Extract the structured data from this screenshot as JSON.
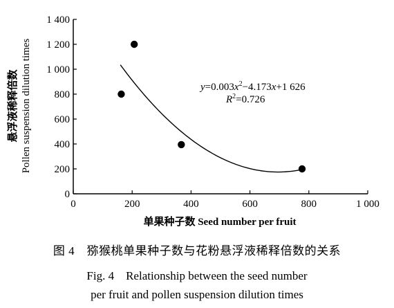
{
  "chart_data": {
    "type": "scatter",
    "xlabel": "单果种子数 Seed number per fruit",
    "ylabel_cn": "悬浮液稀释倍数",
    "ylabel_en": "Pollen suspension dilution times",
    "xlim": [
      0,
      1000
    ],
    "ylim": [
      0,
      1400
    ],
    "xticks": [
      0,
      200,
      400,
      600,
      800,
      1000
    ],
    "xtick_labels": [
      "0",
      "200",
      "400",
      "600",
      "800",
      "1 000"
    ],
    "yticks": [
      0,
      200,
      400,
      600,
      800,
      1000,
      1200,
      1400
    ],
    "ytick_labels": [
      "0",
      "200",
      "400",
      "600",
      "800",
      "1 000",
      "1 200",
      "1 400"
    ],
    "points": [
      {
        "x": 163,
        "y": 800
      },
      {
        "x": 207,
        "y": 1200
      },
      {
        "x": 367,
        "y": 395
      },
      {
        "x": 777,
        "y": 200
      }
    ],
    "fit": {
      "a": 0.003,
      "b": -4.173,
      "c": 1626,
      "x_range": [
        160,
        777
      ]
    },
    "equation": {
      "y_var": "y",
      "eq_text": "=0.003",
      "x_var": "x",
      "sup2": "2",
      "mid_text": "−4.173",
      "x_var2": "x",
      "tail_text": "+1 626",
      "r_var": "R",
      "r_sup": "2",
      "r_tail": "=0.726"
    },
    "grid": false,
    "legend": "none"
  },
  "caption": {
    "cn": "图 4　猕猴桃单果种子数与花粉悬浮液稀释倍数的关系",
    "en_line1": "Fig. 4　Relationship between the seed number",
    "en_line2": "per fruit and pollen suspension dilution times"
  }
}
